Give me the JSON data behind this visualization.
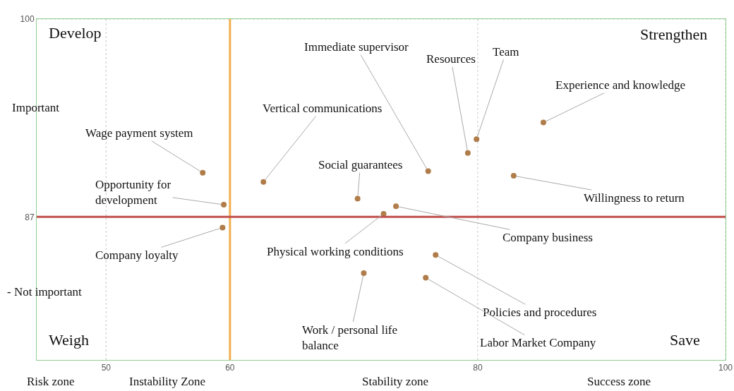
{
  "chart_data": {
    "type": "scatter",
    "marker": "circle",
    "color": "#b07d4a",
    "grid": true,
    "xlim": [
      44.4,
      100
    ],
    "xticks": [
      50,
      60,
      80,
      100
    ],
    "ylim": [
      77.6,
      100
    ],
    "yticks": [
      87,
      100
    ],
    "x": [
      57.8,
      59.5,
      59.4,
      62.7,
      70.3,
      76.0,
      79.2,
      79.9,
      85.3,
      82.9,
      73.4,
      72.4,
      76.6,
      75.8,
      70.8
    ],
    "values": [
      89.9,
      87.8,
      86.3,
      89.3,
      88.2,
      90.0,
      91.2,
      92.1,
      93.2,
      89.7,
      87.7,
      87.2,
      84.5,
      83.0,
      83.3
    ],
    "ref_lines": [
      {
        "axis": "x",
        "value": 60,
        "color": "#f0b050"
      },
      {
        "axis": "y",
        "value": 87,
        "color": "#c0504d"
      }
    ],
    "annotations": [
      {
        "text": "Wage payment system",
        "x": 57.8,
        "y": 89.9
      },
      {
        "text": "Opportunity for\ndevelopment",
        "x": 59.5,
        "y": 87.8
      },
      {
        "text": "Company loyalty",
        "x": 59.4,
        "y": 86.3
      },
      {
        "text": "Vertical communications",
        "x": 62.7,
        "y": 89.3
      },
      {
        "text": "Social guarantees",
        "x": 70.3,
        "y": 88.2
      },
      {
        "text": "Immediate supervisor",
        "x": 76.0,
        "y": 90.0
      },
      {
        "text": "Resources",
        "x": 79.2,
        "y": 91.2
      },
      {
        "text": "Team",
        "x": 79.9,
        "y": 92.1
      },
      {
        "text": "Experience and knowledge",
        "x": 85.3,
        "y": 93.2
      },
      {
        "text": "Willingness to return",
        "x": 82.9,
        "y": 89.7
      },
      {
        "text": "Company business",
        "x": 73.4,
        "y": 87.7
      },
      {
        "text": "Physical working conditions",
        "x": 72.4,
        "y": 87.2
      },
      {
        "text": "Policies and procedures",
        "x": 76.6,
        "y": 84.5
      },
      {
        "text": "Labor Market Company",
        "x": 75.8,
        "y": 83.0
      },
      {
        "text": "Work / personal life\nbalance",
        "x": 70.8,
        "y": 83.3
      },
      "Develop",
      "Strengthen",
      "Weigh",
      "Save",
      "Risk zone",
      "Instability Zone",
      "Stability zone",
      "Success zone",
      "Important",
      "- Not important"
    ]
  }
}
